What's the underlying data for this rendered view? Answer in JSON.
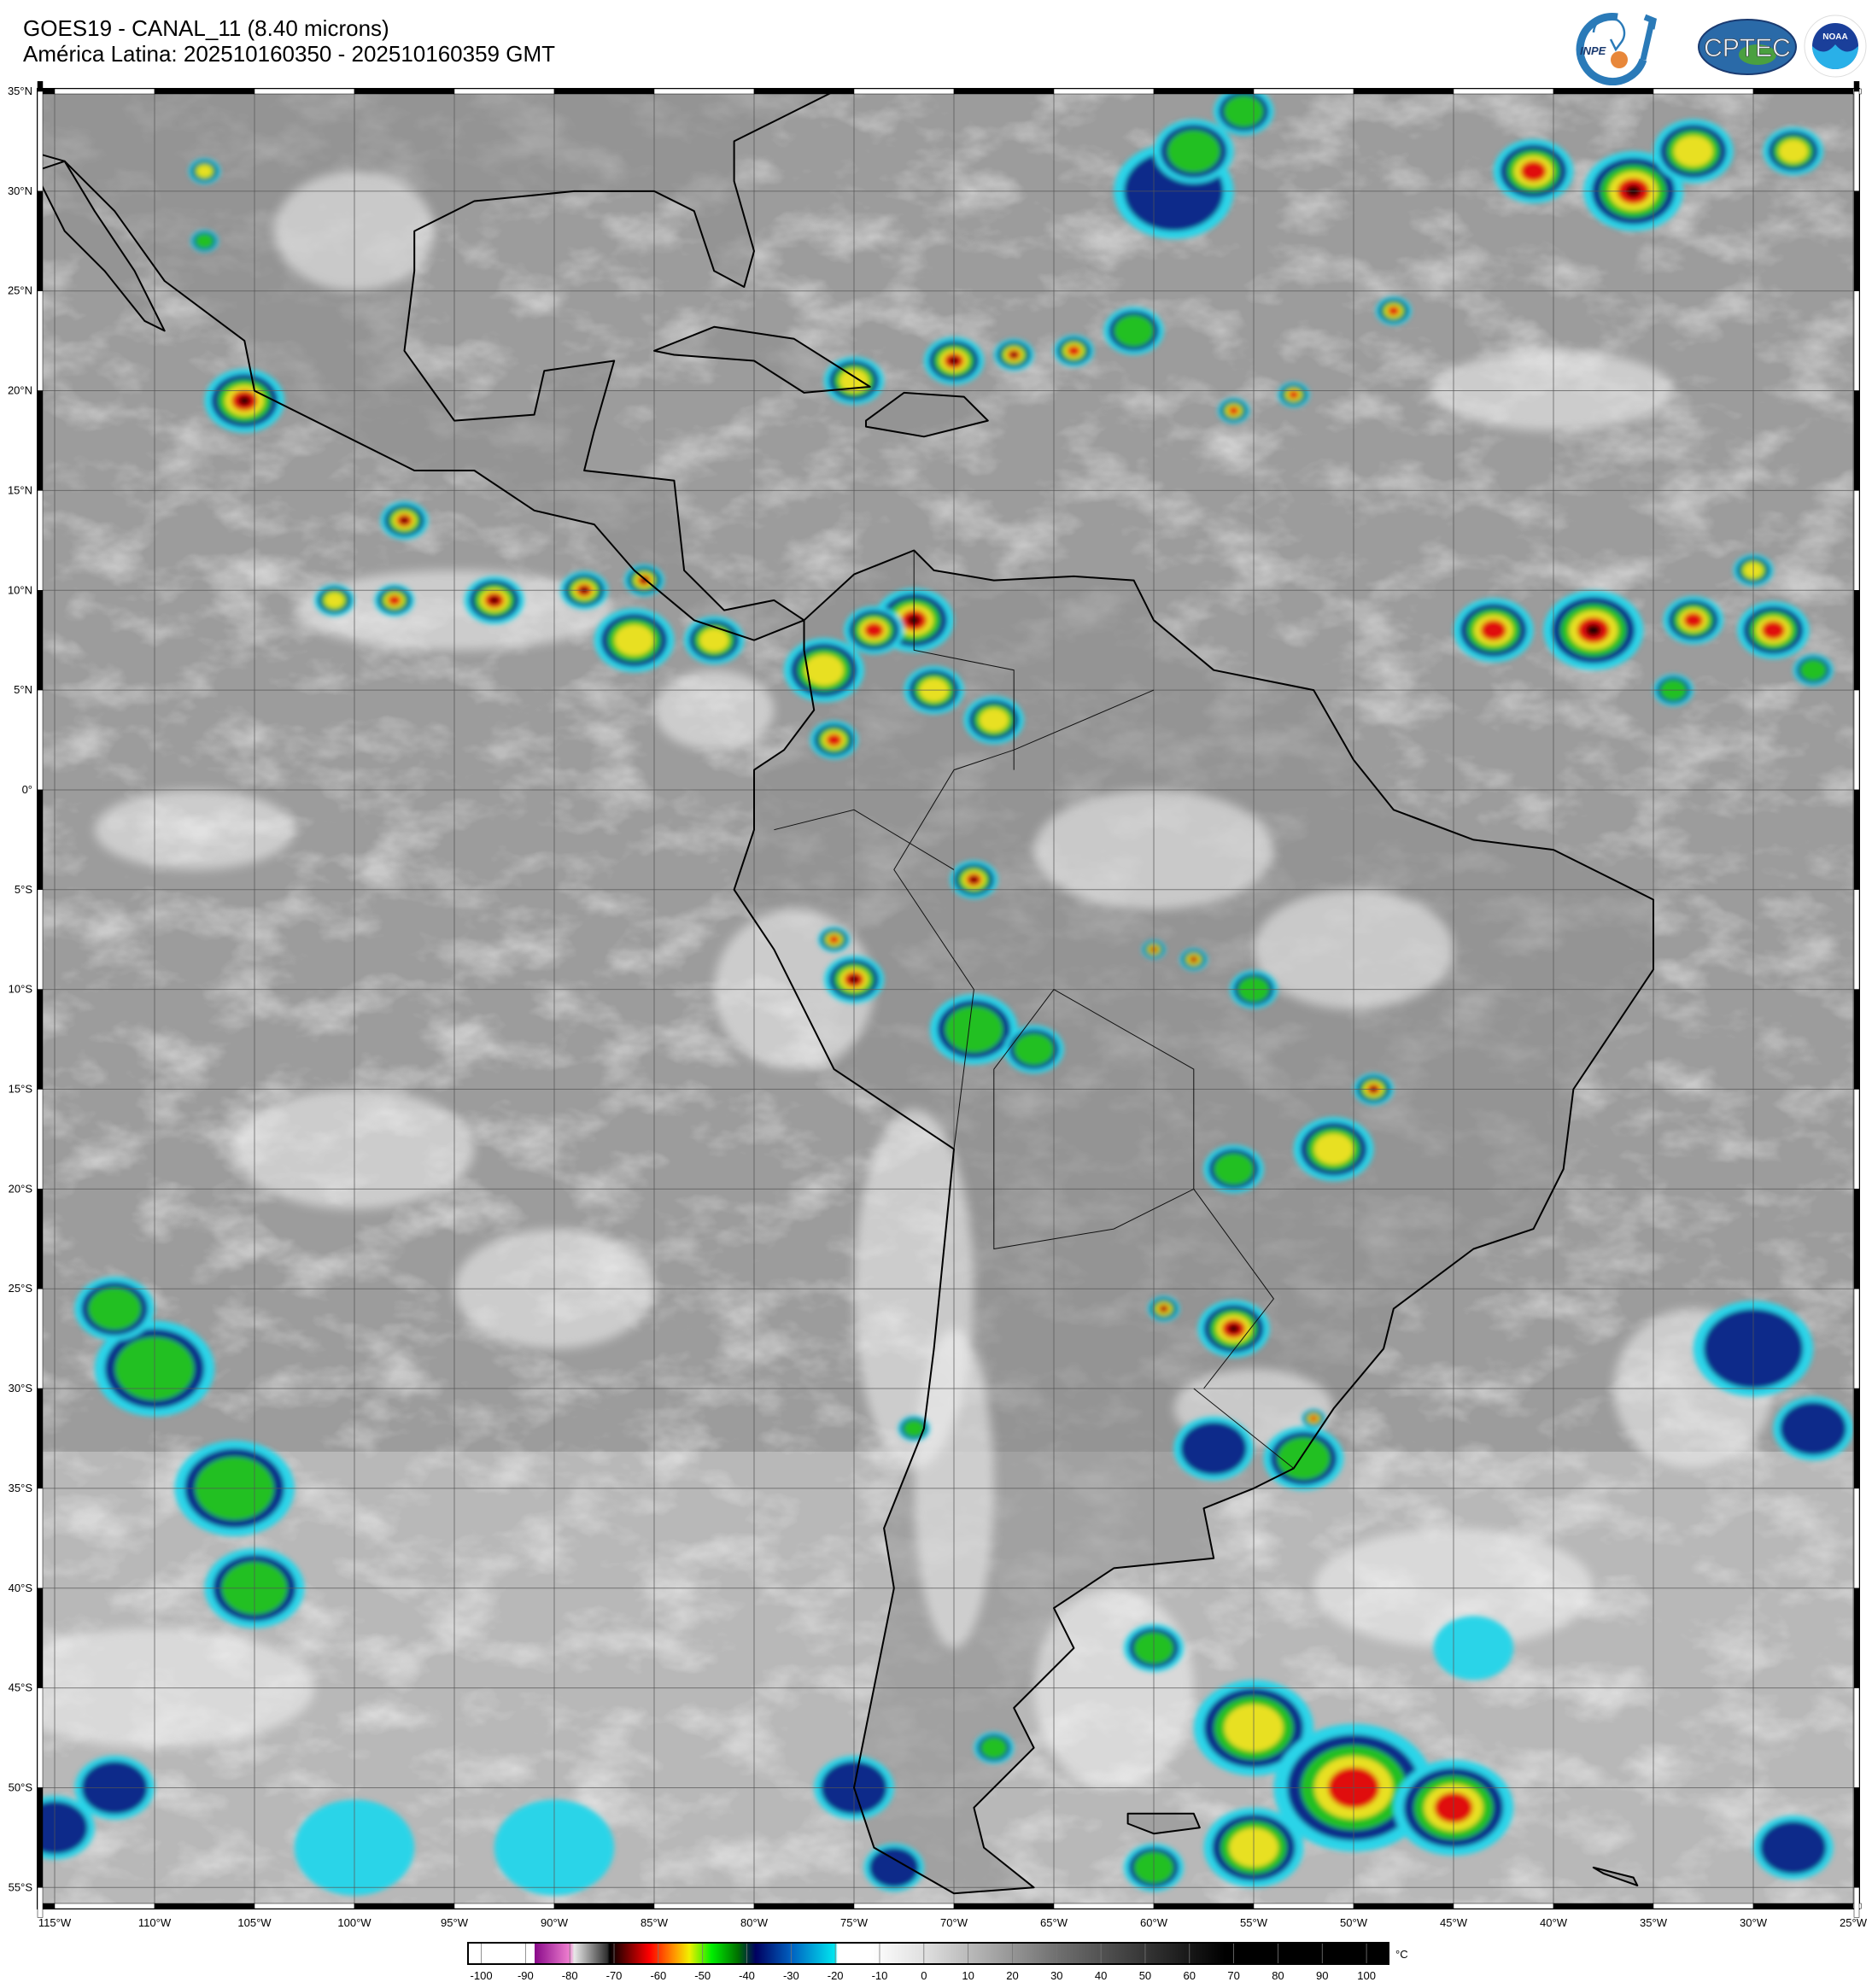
{
  "header": {
    "title_line1": "GOES19 - CANAL_11 (8.40 microns)",
    "title_line2": "América Latina: 202510160350 - 202510160359 GMT"
  },
  "logos": {
    "inpe": "INPE",
    "cptec": "CPTEC",
    "noaa": "NOAA",
    "noaa_ring": "NATIONAL OCEANIC AND ATMOSPHERIC ADMINISTRATION",
    "noaa_bottom": "U.S. DEPARTMENT OF COMMERCE"
  },
  "map": {
    "lat_labels": [
      "35°N",
      "30°N",
      "25°N",
      "20°N",
      "15°N",
      "10°N",
      "5°N",
      "0°",
      "5°S",
      "10°S",
      "15°S",
      "20°S",
      "25°S",
      "30°S",
      "35°S",
      "40°S",
      "45°S",
      "50°S",
      "55°S"
    ],
    "lon_labels": [
      "115°W",
      "110°W",
      "105°W",
      "100°W",
      "95°W",
      "90°W",
      "85°W",
      "80°W",
      "75°W",
      "70°W",
      "65°W",
      "60°W",
      "55°W",
      "50°W",
      "45°W",
      "40°W",
      "35°W",
      "30°W",
      "25°W"
    ],
    "lat_range": [
      -56.5,
      35.5
    ],
    "lon_range": [
      -115.8,
      -24.6
    ],
    "grid": true,
    "ocean_color": "#9c9c9c",
    "land_color": "#8e8e8e"
  },
  "colorbar": {
    "ticks": [
      "-100",
      "-90",
      "-80",
      "-70",
      "-60",
      "-50",
      "-40",
      "-30",
      "-20",
      "-10",
      "0",
      "10",
      "20",
      "30",
      "40",
      "50",
      "60",
      "70",
      "80",
      "90",
      "100"
    ],
    "unit": "°C",
    "range": [
      -103,
      105
    ],
    "stops": [
      {
        "t": -103,
        "c": "#ffffff"
      },
      {
        "t": -88,
        "c": "#ffffff"
      },
      {
        "t": -87.9,
        "c": "#8a0a8a"
      },
      {
        "t": -80,
        "c": "#f080d0"
      },
      {
        "t": -79,
        "c": "#e8e8e8"
      },
      {
        "t": -71.5,
        "c": "#303030"
      },
      {
        "t": -71,
        "c": "#000000"
      },
      {
        "t": -62,
        "c": "#ff0000"
      },
      {
        "t": -56,
        "c": "#ffa000"
      },
      {
        "t": -53,
        "c": "#f0f000"
      },
      {
        "t": -48,
        "c": "#00f000"
      },
      {
        "t": -42,
        "c": "#007000"
      },
      {
        "t": -38,
        "c": "#000060"
      },
      {
        "t": -30,
        "c": "#0060c0"
      },
      {
        "t": -20,
        "c": "#00e8f0"
      },
      {
        "t": -19.5,
        "c": "#ffffff"
      },
      {
        "t": -12,
        "c": "#ffffff"
      },
      {
        "t": 0,
        "c": "#e0e0e0"
      },
      {
        "t": 30,
        "c": "#707070"
      },
      {
        "t": 68,
        "c": "#000000"
      },
      {
        "t": 105,
        "c": "#000000"
      }
    ]
  }
}
